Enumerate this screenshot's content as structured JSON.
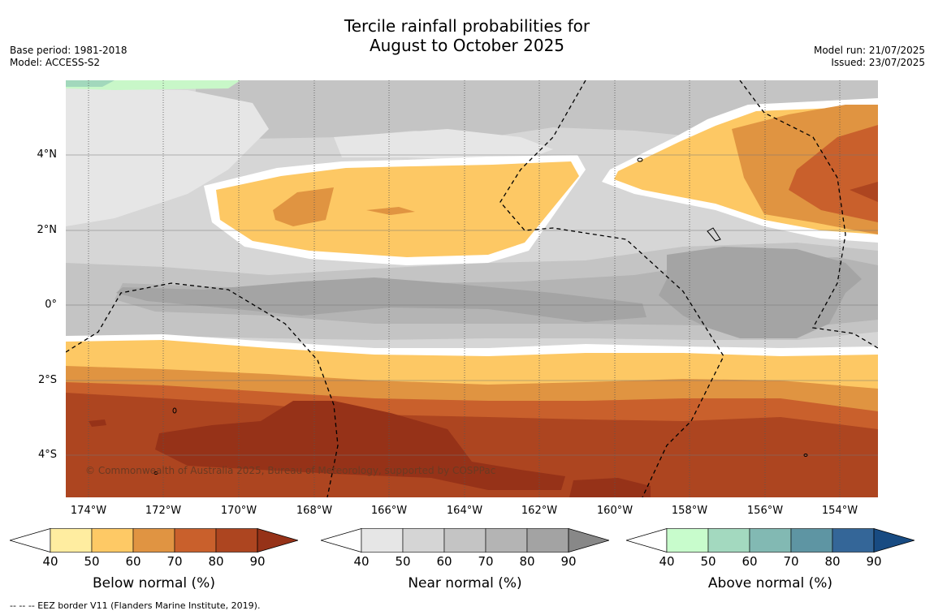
{
  "title": {
    "line1": "Tercile rainfall probabilities for",
    "line2": "August to October 2025"
  },
  "meta": {
    "base_period": "Base period: 1981-2018",
    "model": "Model: ACCESS-S2",
    "model_run": "Model run: 21/07/2025",
    "issued": "Issued: 23/07/2025"
  },
  "map": {
    "x_ticks": [
      "174°W",
      "172°W",
      "170°W",
      "168°W",
      "166°W",
      "164°W",
      "162°W",
      "160°W",
      "158°W",
      "156°W",
      "154°W"
    ],
    "y_ticks": [
      "4°N",
      "2°N",
      "0°",
      "2°S",
      "4°S"
    ],
    "copyright": "© Commonwealth of Australia 2025, Bureau of Meteorology, supported by COSPPac",
    "colors": {
      "near_40": "#e8e8e8",
      "near_50": "#d6d6d6",
      "near_60": "#c4c4c4",
      "near_70": "#b4b4b4",
      "near_80": "#a4a4a4",
      "below_50": "#fde49c",
      "below_60": "#fdc864",
      "below_70": "#e09441",
      "below_80": "#c9602c",
      "below_90": "#ad4520",
      "below_max": "#963218",
      "above_40": "#c8f7c8",
      "above_50": "#a2d8bc"
    }
  },
  "colorbars": [
    {
      "name": "below",
      "label": "Below normal (%)",
      "ticks": [
        "40",
        "50",
        "60",
        "70",
        "80",
        "90"
      ],
      "colors": [
        "#ffeda0",
        "#fec965",
        "#e09442",
        "#c9602c",
        "#ad4520"
      ],
      "over_color": "#963218"
    },
    {
      "name": "near",
      "label": "Near normal (%)",
      "ticks": [
        "40",
        "50",
        "60",
        "70",
        "80",
        "90"
      ],
      "colors": [
        "#e6e6e6",
        "#d5d5d5",
        "#c4c4c4",
        "#b4b4b4",
        "#a3a3a3"
      ],
      "over_color": "#888888"
    },
    {
      "name": "above",
      "label": "Above normal (%)",
      "ticks": [
        "40",
        "50",
        "60",
        "70",
        "80",
        "90"
      ],
      "colors": [
        "#c8fccc",
        "#a3d9bf",
        "#82b9b3",
        "#5e95a3",
        "#346698"
      ],
      "over_color": "#184b82"
    }
  ],
  "footnote": "--  --  -- EEZ border V11 (Flanders Marine Institute, 2019)."
}
